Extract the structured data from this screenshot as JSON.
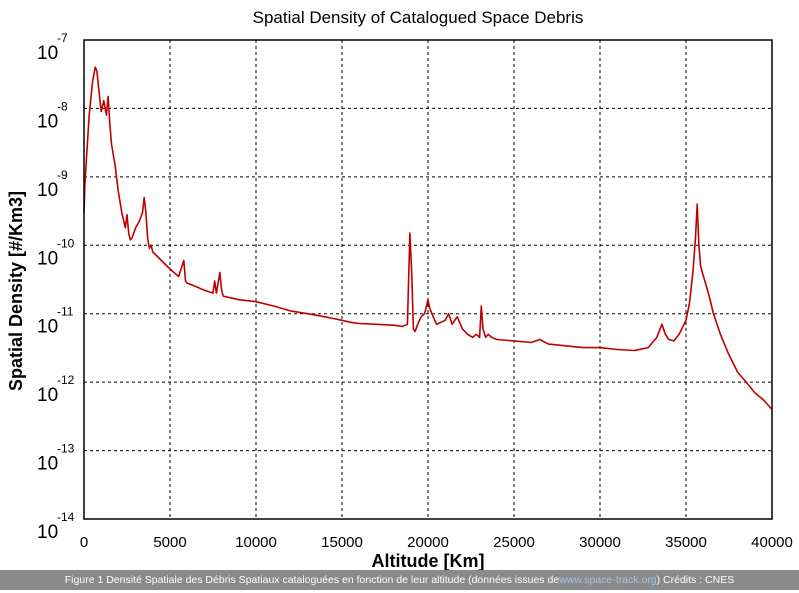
{
  "chart_data": {
    "type": "line",
    "title": "Spatial Density of Catalogued Space Debris",
    "xlabel": "Altitude [Km]",
    "ylabel": "Spatial Density [#/Km3]",
    "xlim": [
      0,
      40000
    ],
    "ylim": [
      1e-14,
      1e-07
    ],
    "yscale": "log",
    "grid": true,
    "line_color": "#c00000",
    "x_ticks": [
      "0",
      "5000",
      "10000",
      "15000",
      "20000",
      "25000",
      "30000",
      "35000",
      "40000"
    ],
    "y_ticks": [
      {
        "base": "10",
        "exp": "-7"
      },
      {
        "base": "10",
        "exp": "-8"
      },
      {
        "base": "10",
        "exp": "-9"
      },
      {
        "base": "10",
        "exp": "-10"
      },
      {
        "base": "10",
        "exp": "-11"
      },
      {
        "base": "10",
        "exp": "-12"
      },
      {
        "base": "10",
        "exp": "-13"
      },
      {
        "base": "10",
        "exp": "-14"
      }
    ],
    "series": [
      {
        "x": [
          0,
          50,
          150,
          300,
          500,
          650,
          750,
          850,
          1000,
          1150,
          1300,
          1400,
          1500,
          1600,
          1800,
          2000,
          2200,
          2400,
          2500,
          2600,
          2700,
          2800,
          3000,
          3200,
          3400,
          3500,
          3600,
          3700,
          3800,
          3900,
          4000,
          4500,
          5000,
          5500,
          5800,
          5900,
          6000,
          6500,
          7000,
          7500,
          7600,
          7700,
          7900,
          8000,
          8100,
          9000,
          10000,
          11000,
          12000,
          13000,
          13500,
          14000,
          14500,
          15000,
          15500,
          16000,
          17000,
          18000,
          18500,
          18800,
          18950,
          19050,
          19150,
          19250,
          19400,
          19600,
          19800,
          20000,
          20100,
          20300,
          20500,
          21000,
          21200,
          21400,
          21700,
          22000,
          22300,
          22600,
          22800,
          23000,
          23100,
          23200,
          23350,
          23500,
          23700,
          24000,
          25000,
          26000,
          26500,
          27000,
          28000,
          29000,
          30000,
          31000,
          32000,
          32800,
          33300,
          33600,
          33800,
          34000,
          34300,
          34600,
          35000,
          35200,
          35400,
          35550,
          35650,
          35750,
          35850,
          35950,
          36100,
          36300,
          36600,
          37000,
          37500,
          38000,
          38500,
          39000,
          39500,
          40000
        ],
        "y": [
          3e-10,
          8e-10,
          2e-09,
          8e-09,
          2.5e-08,
          4e-08,
          3.5e-08,
          2e-08,
          9e-09,
          1.3e-08,
          8e-09,
          1.5e-08,
          6e-09,
          3e-09,
          1.5e-09,
          6e-10,
          3e-10,
          1.8e-10,
          2.8e-10,
          1.5e-10,
          1.2e-10,
          1.3e-10,
          1.8e-10,
          2.2e-10,
          3e-10,
          5e-10,
          3e-10,
          1.3e-10,
          9e-11,
          1e-10,
          8e-11,
          6e-11,
          4.5e-11,
          3.5e-11,
          6e-11,
          3e-11,
          2.8e-11,
          2.5e-11,
          2.2e-11,
          2e-11,
          3e-11,
          2e-11,
          4e-11,
          2.2e-11,
          1.8e-11,
          1.6e-11,
          1.5e-11,
          1.3e-11,
          1.1e-11,
          1e-11,
          9.5e-12,
          9e-12,
          8.5e-12,
          8e-12,
          7.5e-12,
          7.2e-12,
          7e-12,
          6.8e-12,
          6.5e-12,
          7e-12,
          1.5e-10,
          4e-11,
          6e-12,
          5.5e-12,
          7e-12,
          9e-12,
          1e-11,
          1.6e-11,
          1.2e-11,
          9e-12,
          7e-12,
          8e-12,
          1e-11,
          7e-12,
          9e-12,
          6e-12,
          5e-12,
          4.5e-12,
          5e-12,
          4.5e-12,
          1.3e-11,
          6e-12,
          4.5e-12,
          5e-12,
          4.5e-12,
          4.2e-12,
          4e-12,
          3.8e-12,
          4.2e-12,
          3.6e-12,
          3.4e-12,
          3.2e-12,
          3.2e-12,
          3e-12,
          2.9e-12,
          3.2e-12,
          4.5e-12,
          7e-12,
          5e-12,
          4.2e-12,
          4e-12,
          5e-12,
          8e-12,
          1.4e-11,
          4e-11,
          1.3e-10,
          4e-10,
          1e-10,
          5e-11,
          4e-11,
          3e-11,
          2e-11,
          1e-11,
          5e-12,
          2.5e-12,
          1.4e-12,
          1e-12,
          7e-13,
          5.5e-13,
          4e-13
        ]
      }
    ]
  },
  "caption": {
    "text_before": "Figure 1 Densité Spatiale des Débris Spatiaux cataloguées en fonction de leur altitude (données issues de ",
    "link_text": "www.space-track.org",
    "text_after": ") Crédits : CNES"
  }
}
